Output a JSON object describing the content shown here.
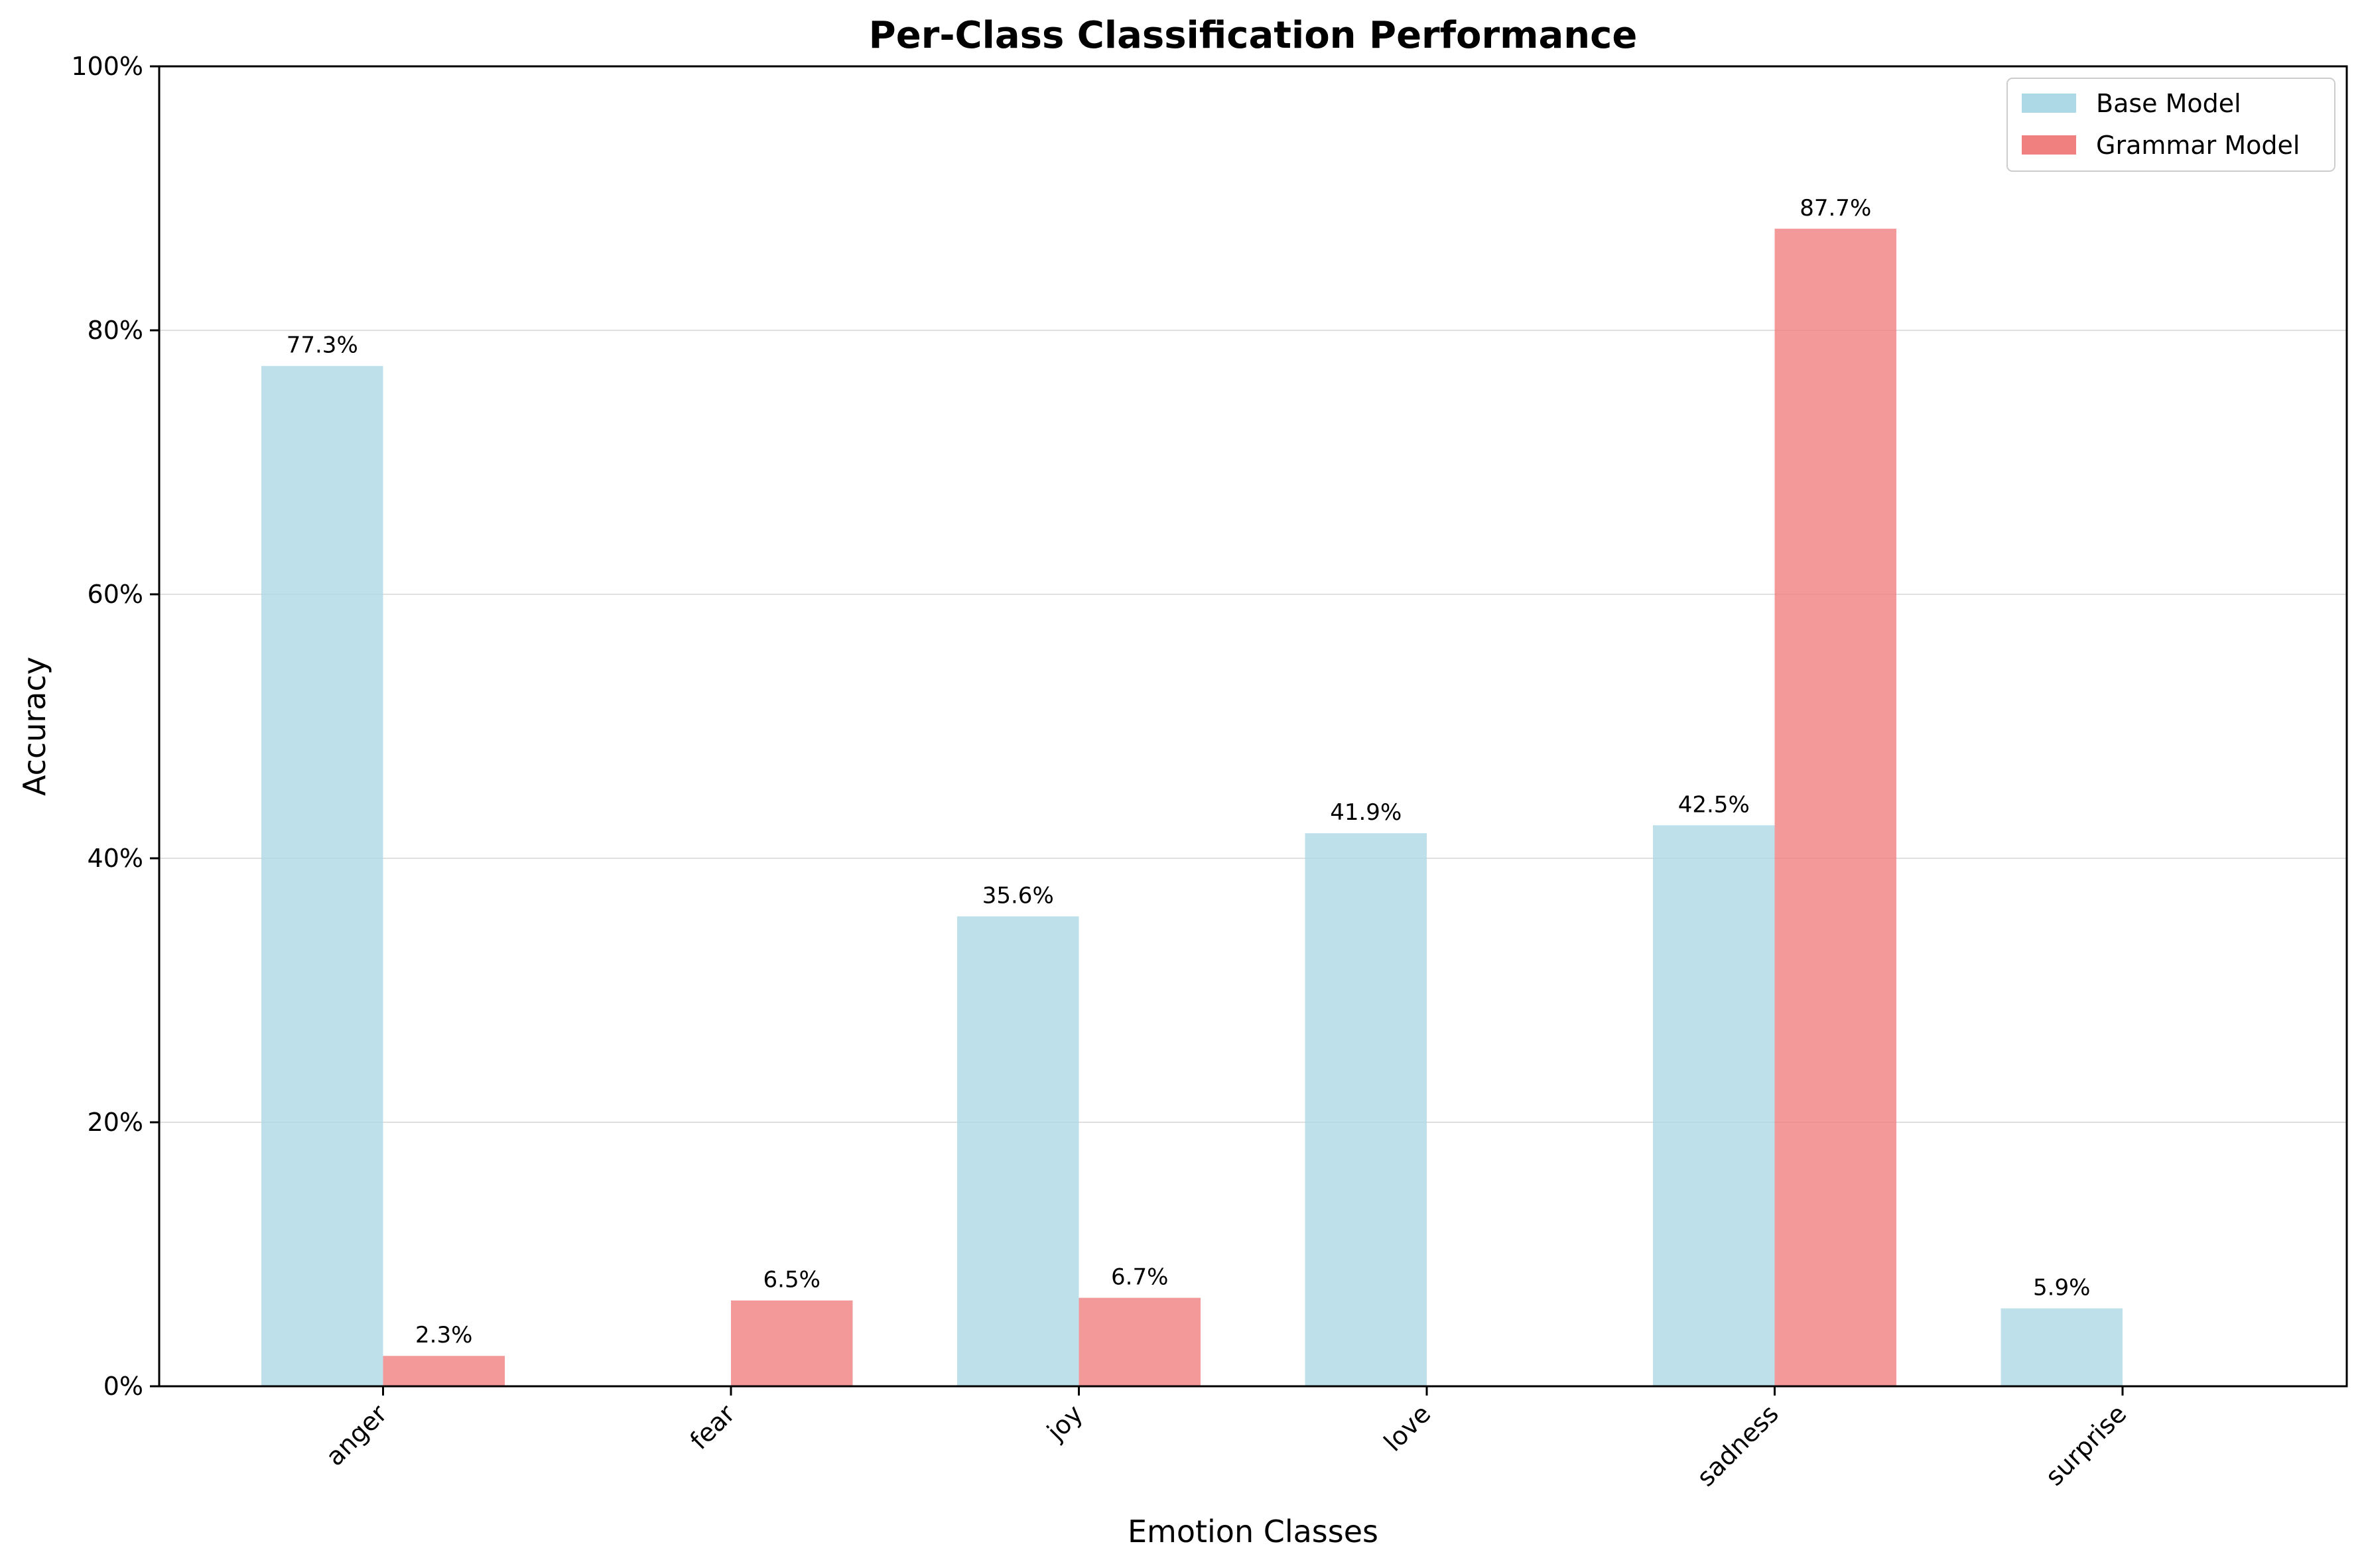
{
  "chart_data": {
    "type": "bar",
    "title": "Per-Class Classification Performance",
    "xlabel": "Emotion Classes",
    "ylabel": "Accuracy",
    "categories": [
      "anger",
      "fear",
      "joy",
      "love",
      "sadness",
      "surprise"
    ],
    "series": [
      {
        "name": "Base Model",
        "color": "#add8e6",
        "values": [
          77.3,
          0,
          35.6,
          41.9,
          42.5,
          5.9
        ],
        "labels": [
          "77.3%",
          "",
          "35.6%",
          "41.9%",
          "42.5%",
          "5.9%"
        ]
      },
      {
        "name": "Grammar Model",
        "color": "#f08080",
        "values": [
          2.3,
          6.5,
          6.7,
          0,
          87.7,
          0
        ],
        "labels": [
          "2.3%",
          "6.5%",
          "6.7%",
          "",
          "87.7%",
          ""
        ]
      }
    ],
    "ylim": [
      0,
      100
    ],
    "yticks": [
      0,
      20,
      40,
      60,
      80,
      100
    ],
    "ytick_labels": [
      "0%",
      "20%",
      "40%",
      "60%",
      "80%",
      "100%"
    ],
    "grid": "horizontal",
    "legend_position": "top-right"
  }
}
